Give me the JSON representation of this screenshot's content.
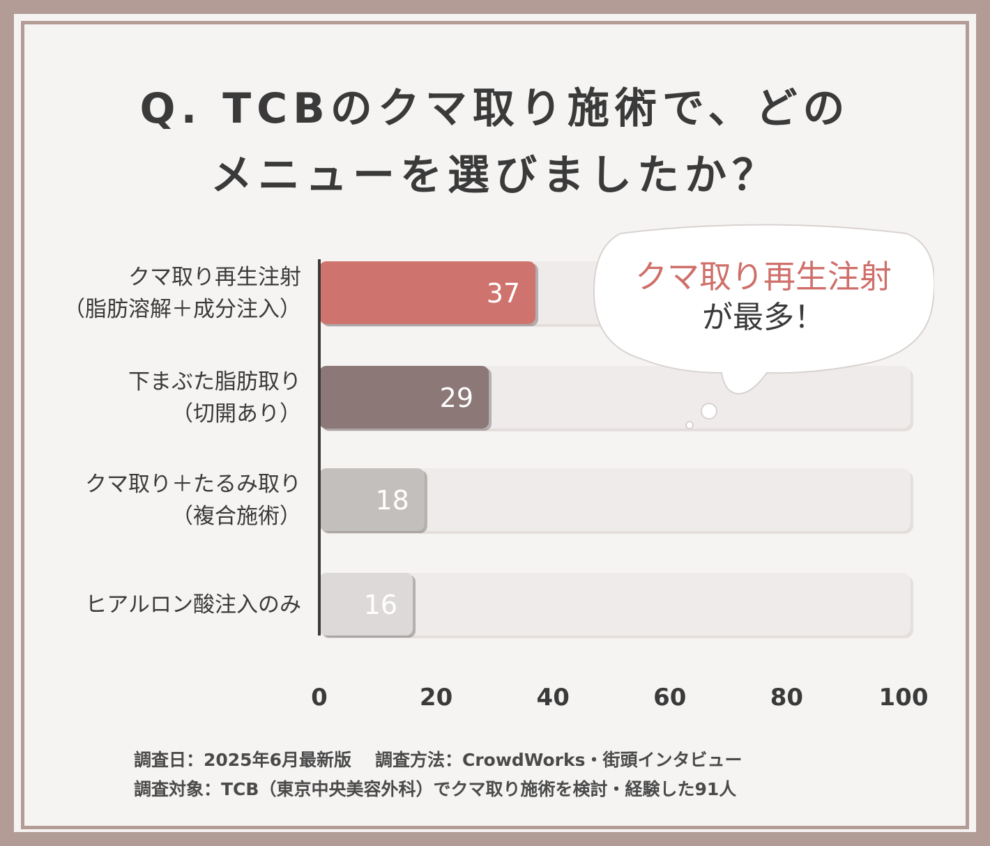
{
  "title": {
    "line1": "Q. TCBのクマ取り施術で、どの",
    "line2": "メニューを選びましたか？"
  },
  "colors": {
    "frame": "#b39c96",
    "bar1": "#cf736e",
    "bar2": "#8b7877",
    "bar3": "#c3bfbd",
    "bar4": "#dcd9d8",
    "track": "#efebea",
    "highlight": "#cf6f6a"
  },
  "callout": {
    "highlight": "クマ取り再生注射",
    "suffix": "が最多！"
  },
  "footer": {
    "line1_a": "調査日：2025年6月最新版",
    "line1_b": "調査方法：CrowdWorks・街頭インタビュー",
    "line2": "調査対象：TCB（東京中央美容外科）でクマ取り施術を検討・経験した91人"
  },
  "chart_data": {
    "type": "bar",
    "orientation": "horizontal",
    "categories": [
      [
        "クマ取り再生注射",
        "（脂肪溶解＋成分注入）"
      ],
      [
        "下まぶた脂肪取り",
        "（切開あり）"
      ],
      [
        "クマ取り＋たるみ取り",
        "（複合施術）"
      ],
      [
        "ヒアルロン酸注入のみ"
      ]
    ],
    "values": [
      37,
      29,
      18,
      16
    ],
    "xlim": [
      0,
      100
    ],
    "xticks": [
      0,
      20,
      40,
      60,
      80,
      100
    ],
    "title": "Q. TCBのクマ取り施術で、どのメニューを選びましたか？",
    "xlabel": "",
    "ylabel": "",
    "grid": false
  }
}
